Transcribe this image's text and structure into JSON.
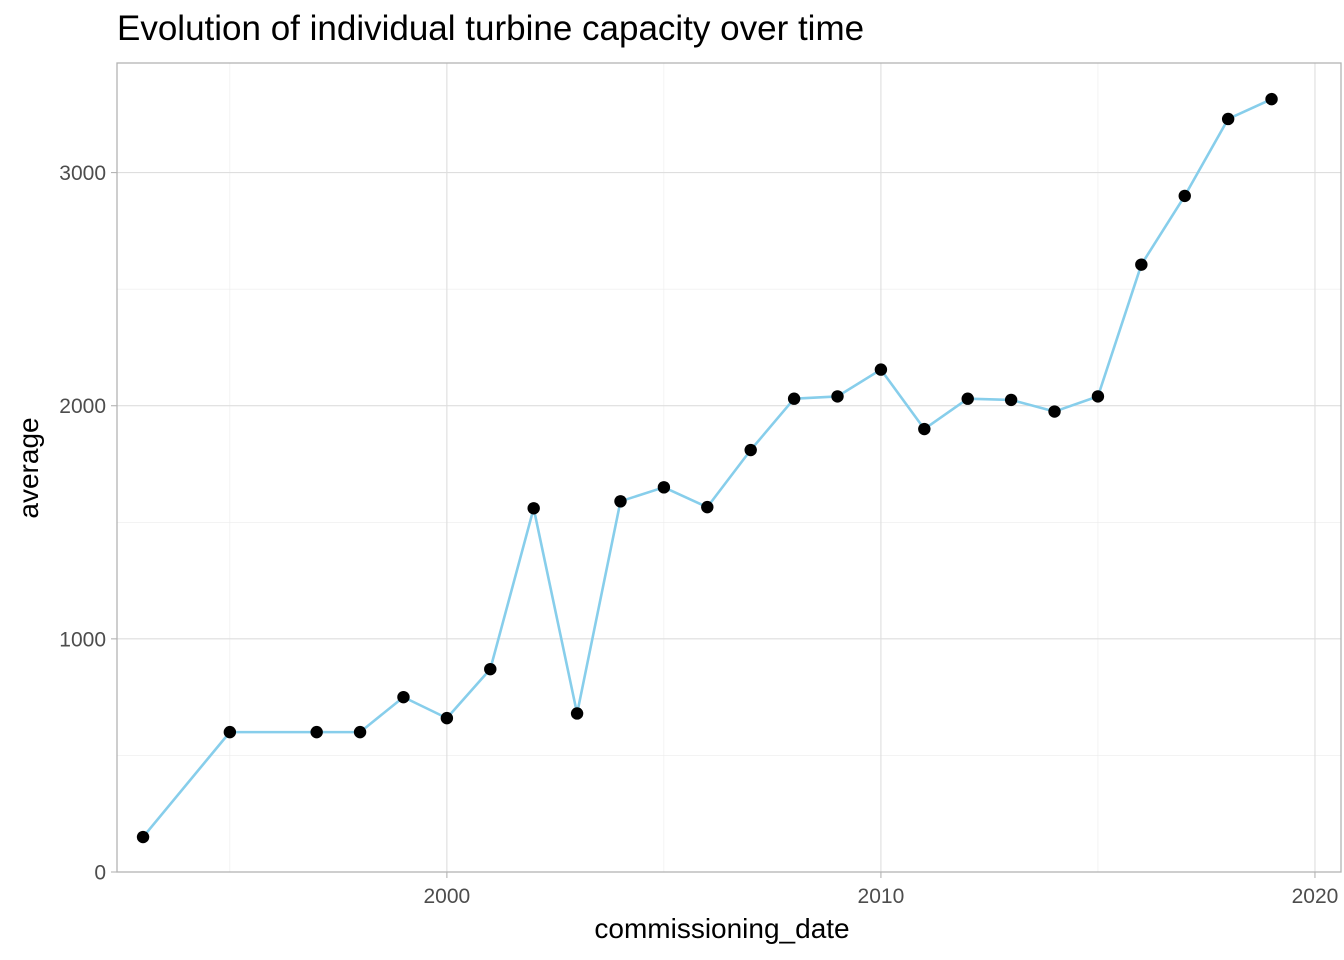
{
  "chart_data": {
    "type": "line",
    "title": "Evolution of individual turbine capacity over time",
    "xlabel": "commissioning_date",
    "ylabel": "average",
    "xlim": [
      1992.4,
      2020.6
    ],
    "ylim": [
      0,
      3470
    ],
    "x_ticks": [
      2000,
      2010,
      2020
    ],
    "x_minor_ticks": [
      1995,
      2005,
      2015
    ],
    "y_ticks": [
      0,
      1000,
      2000,
      3000
    ],
    "y_minor_ticks": [
      500,
      1500,
      2500
    ],
    "x_tick_labels": [
      "2000",
      "2010",
      "2020"
    ],
    "y_tick_labels": [
      "0",
      "1000",
      "2000",
      "3000"
    ],
    "grid": true,
    "line_color": "#87CEEB",
    "point_color": "#000000",
    "series": [
      {
        "x": [
          1993,
          1995,
          1997,
          1998,
          1999,
          2000,
          2001,
          2002,
          2003,
          2004,
          2005,
          2006,
          2007,
          2008,
          2009,
          2010,
          2011,
          2012,
          2013,
          2014,
          2015,
          2016,
          2017,
          2018,
          2019
        ],
        "y": [
          150,
          600,
          600,
          600,
          750,
          660,
          870,
          1560,
          680,
          1590,
          1650,
          1565,
          1810,
          2030,
          2040,
          2155,
          1900,
          2030,
          2025,
          1975,
          2040,
          2605,
          2900,
          3230,
          3315
        ]
      }
    ]
  }
}
